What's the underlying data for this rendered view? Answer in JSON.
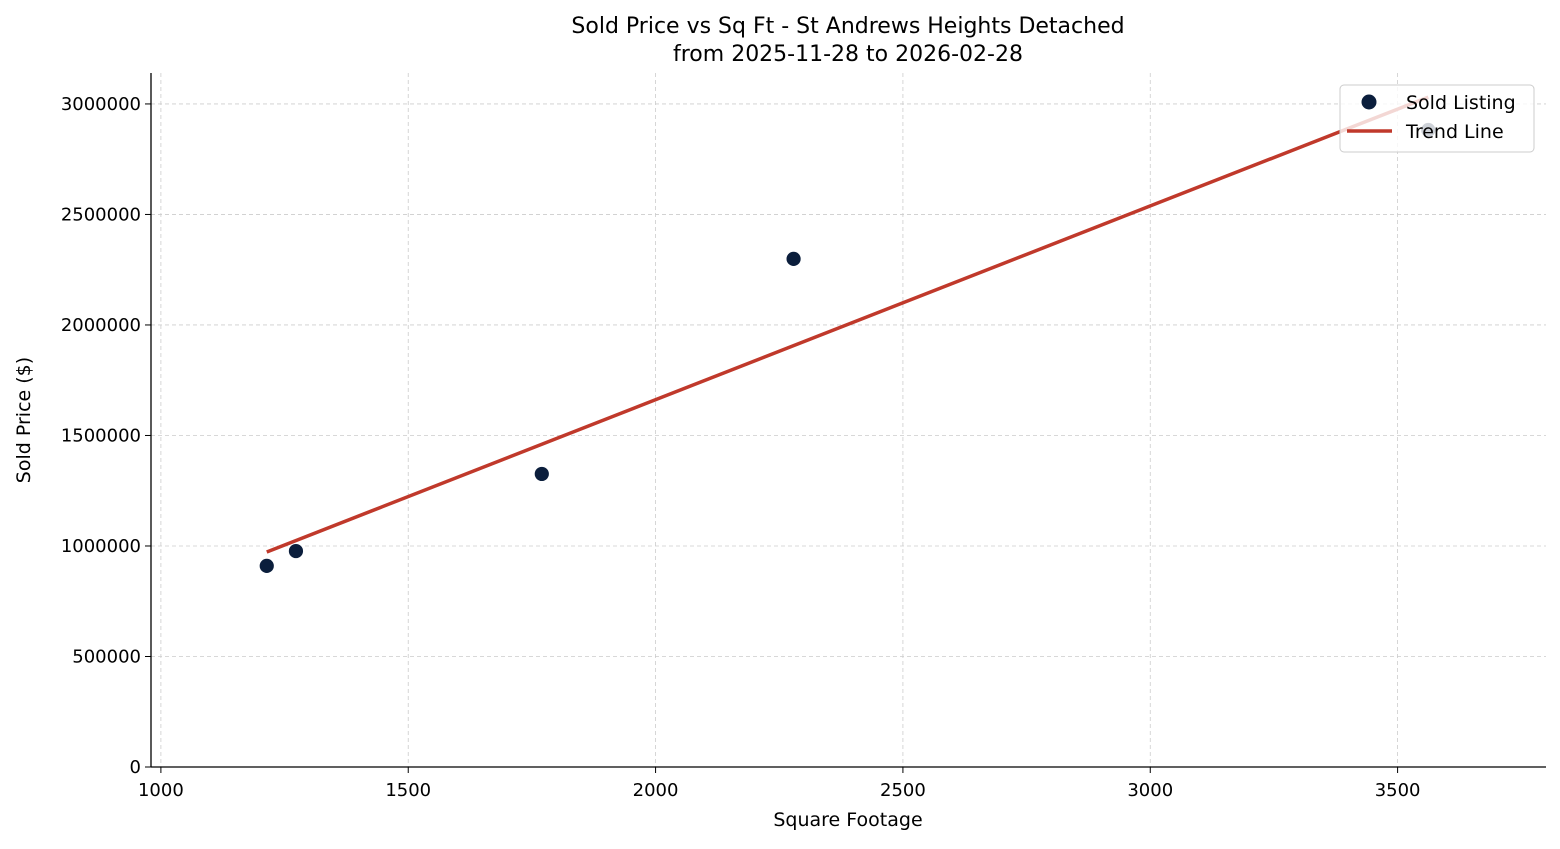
{
  "chart_data": {
    "type": "scatter",
    "title": "Sold Price vs Sq Ft - St Andrews Heights Detached",
    "subtitle": "from 2025-11-28 to 2026-02-28",
    "xlabel": "Square Footage",
    "ylabel": "Sold Price ($)",
    "xlim": [
      980,
      3800
    ],
    "ylim": [
      0,
      3140000
    ],
    "xticks": [
      1000,
      1500,
      2000,
      2500,
      3000,
      3500
    ],
    "yticks": [
      0,
      500000,
      1000000,
      1500000,
      2000000,
      2500000,
      3000000
    ],
    "grid": true,
    "legend_position": "top-right",
    "series": [
      {
        "name": "Sold Listing",
        "kind": "scatter",
        "color": "#0b1e3c",
        "x": [
          1214,
          1273,
          1770,
          2279,
          3562
        ],
        "y": [
          910000,
          977000,
          1326000,
          2299000,
          2882000
        ]
      },
      {
        "name": "Trend Line",
        "kind": "line",
        "color": "#c0392b",
        "x": [
          1214,
          3562
        ],
        "y": [
          973000,
          3031000
        ]
      }
    ]
  }
}
